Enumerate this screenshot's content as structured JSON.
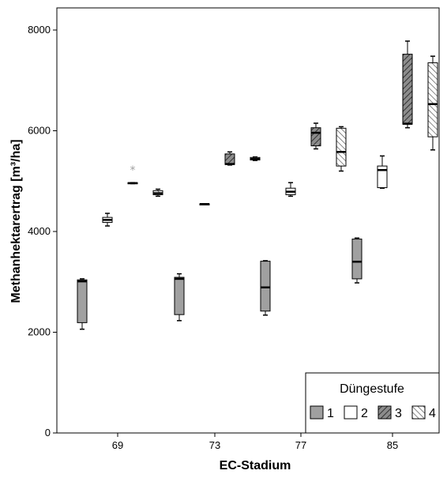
{
  "chart_data": {
    "type": "boxplot",
    "xlabel": "EC-Stadium",
    "ylabel": "Methanhektarertrag [m³/ha]",
    "ylim": [
      0,
      8300
    ],
    "yticks": [
      "0",
      "2000",
      "4000",
      "6000",
      "8000"
    ],
    "categories": [
      "69",
      "73",
      "77",
      "85"
    ],
    "legend": {
      "title": "Düngestufe",
      "position": "bottom-right",
      "entries": [
        "1",
        "2",
        "3",
        "4"
      ]
    },
    "series": [
      {
        "name": "1",
        "fill": "#a0a0a0",
        "pattern": "solid",
        "boxes": [
          {
            "min": 2060,
            "q1": 2190,
            "median": 3010,
            "q3": 3040,
            "max": 3060
          },
          {
            "min": 2230,
            "q1": 2350,
            "median": 3060,
            "q3": 3090,
            "max": 3160
          },
          {
            "min": 2340,
            "q1": 2420,
            "median": 2890,
            "q3": 3410,
            "max": 3420
          },
          {
            "min": 2980,
            "q1": 3060,
            "median": 3400,
            "q3": 3850,
            "max": 3870
          }
        ]
      },
      {
        "name": "2",
        "fill": "#ffffff",
        "pattern": "solid",
        "boxes": [
          {
            "min": 4110,
            "q1": 4180,
            "median": 4230,
            "q3": 4280,
            "max": 4360
          },
          {
            "min": 4540,
            "q1": 4540,
            "median": 4545,
            "q3": 4550,
            "max": 4550
          },
          {
            "min": 4700,
            "q1": 4730,
            "median": 4790,
            "q3": 4860,
            "max": 4970
          },
          {
            "min": 4860,
            "q1": 4870,
            "median": 5220,
            "q3": 5300,
            "max": 5500
          }
        ]
      },
      {
        "name": "3",
        "fill": "#8c8c8c",
        "pattern": "hatch-right",
        "boxes": [
          {
            "min": 4950,
            "q1": 4950,
            "median": 4960,
            "q3": 4970,
            "max": 4970,
            "outlier": 5220
          },
          {
            "min": 5320,
            "q1": 5330,
            "median": 5340,
            "q3": 5540,
            "max": 5580
          },
          {
            "min": 5640,
            "q1": 5700,
            "median": 5960,
            "q3": 6060,
            "max": 6150
          },
          {
            "min": 6060,
            "q1": 6130,
            "median": 6140,
            "q3": 7520,
            "max": 7780
          }
        ]
      },
      {
        "name": "4",
        "fill": "#ffffff",
        "pattern": "hatch-left",
        "boxes": [
          {
            "min": 4700,
            "q1": 4730,
            "median": 4760,
            "q3": 4810,
            "max": 4840
          },
          {
            "min": 5410,
            "q1": 5420,
            "median": 5440,
            "q3": 5470,
            "max": 5480
          },
          {
            "min": 5200,
            "q1": 5300,
            "median": 5580,
            "q3": 6050,
            "max": 6080
          },
          {
            "min": 5620,
            "q1": 5880,
            "median": 6530,
            "q3": 7350,
            "max": 7480
          }
        ]
      }
    ]
  }
}
